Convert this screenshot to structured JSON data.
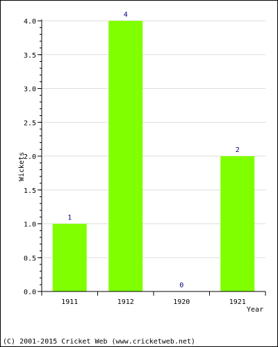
{
  "chart_data": {
    "type": "bar",
    "categories": [
      "1911",
      "1912",
      "1920",
      "1921"
    ],
    "values": [
      1,
      4,
      0,
      2
    ],
    "data_labels": [
      "1",
      "4",
      "0",
      "2"
    ],
    "title": "",
    "xlabel": "Year",
    "ylabel": "Wickets",
    "ylim": [
      0,
      4
    ],
    "yticks": [
      "0.0",
      "0.5",
      "1.0",
      "1.5",
      "2.0",
      "2.5",
      "3.0",
      "3.5",
      "4.0"
    ],
    "grid": true,
    "bar_color": "#80ff00",
    "label_color": "#000080"
  },
  "footer": {
    "copyright": "(C) 2001-2015 Cricket Web (www.cricketweb.net)"
  }
}
